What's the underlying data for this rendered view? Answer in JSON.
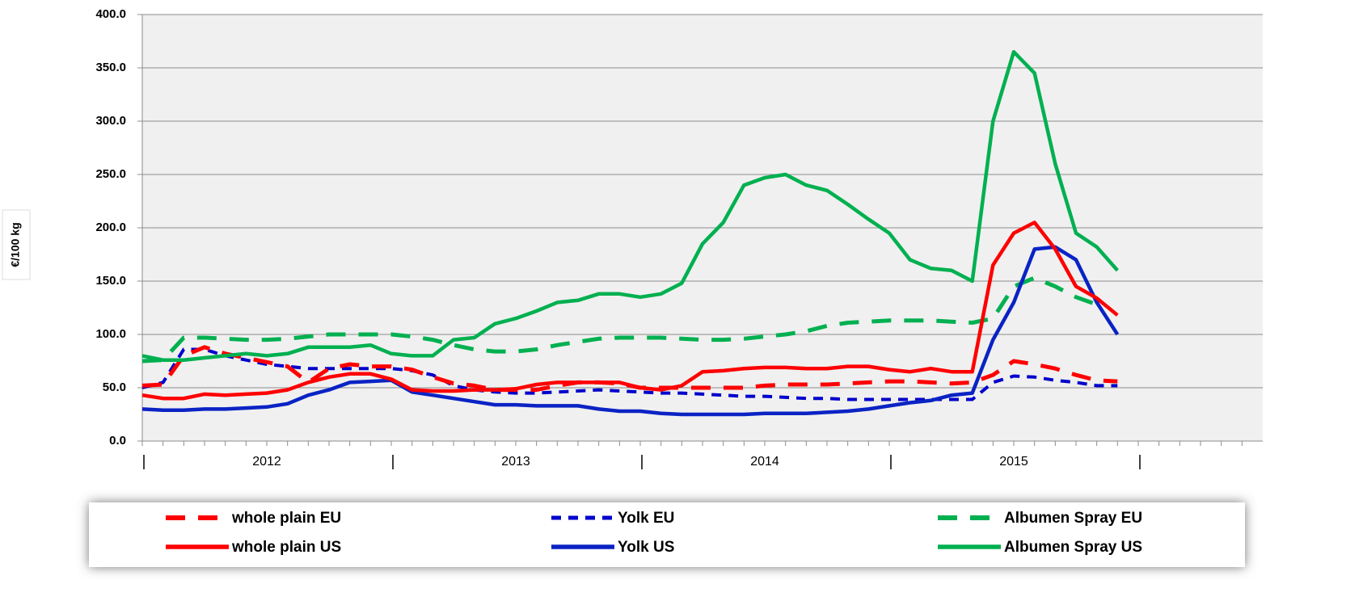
{
  "chart_data": {
    "type": "line",
    "y_label": "€/100 kg",
    "categories": [
      null,
      null,
      null,
      null,
      null,
      null,
      null,
      null,
      null,
      null,
      null,
      null,
      null,
      null,
      null,
      null,
      null,
      null,
      null,
      null,
      null,
      null,
      null,
      null,
      null,
      null,
      null,
      null,
      null,
      null,
      null,
      null,
      null,
      null,
      null,
      null,
      null,
      null,
      null,
      null,
      null,
      null,
      null,
      null,
      null,
      null,
      null,
      null,
      null,
      null,
      null,
      null,
      null,
      null
    ],
    "x_groups": [
      "2012",
      "2013",
      "2014",
      "2015"
    ],
    "ylim": [
      0,
      400
    ],
    "yticks": [
      {
        "value": 0,
        "label": "0.0"
      },
      {
        "value": 50,
        "label": "50.0"
      },
      {
        "value": 100,
        "label": "100.0"
      },
      {
        "value": 150,
        "label": "150.0"
      },
      {
        "value": 200,
        "label": "200.0"
      },
      {
        "value": 250,
        "label": "250.0"
      },
      {
        "value": 300,
        "label": "300.0"
      },
      {
        "value": 350,
        "label": "350.0"
      },
      {
        "value": 400,
        "label": "400.0"
      }
    ],
    "grid": true,
    "legend": "bottom",
    "series": [
      {
        "name": "whole plain EU",
        "color": "#ff0000",
        "style": "dashed",
        "values": [
          52,
          53,
          80,
          88,
          82,
          78,
          74,
          70,
          55,
          68,
          72,
          70,
          70,
          67,
          60,
          54,
          52,
          48,
          48,
          48,
          52,
          55,
          55,
          54,
          50,
          50,
          50,
          50,
          50,
          50,
          52,
          53,
          53,
          53,
          54,
          55,
          56,
          56,
          55,
          54,
          55,
          62,
          75,
          72,
          68,
          62,
          57,
          56,
          null,
          null,
          null,
          null,
          null,
          null
        ]
      },
      {
        "name": "Yolk EU",
        "color": "#0000cc",
        "style": "dotted",
        "values": [
          50,
          55,
          86,
          86,
          80,
          76,
          72,
          70,
          68,
          68,
          68,
          68,
          68,
          66,
          62,
          52,
          48,
          46,
          45,
          45,
          46,
          47,
          48,
          47,
          46,
          45,
          45,
          44,
          43,
          42,
          42,
          41,
          40,
          40,
          39,
          39,
          39,
          39,
          39,
          39,
          39,
          55,
          61,
          60,
          57,
          55,
          52,
          52,
          null,
          null,
          null,
          null,
          null,
          null
        ]
      },
      {
        "name": "Albumen Spray EU",
        "color": "#00b050",
        "style": "dashed",
        "values": [
          75,
          76,
          97,
          97,
          96,
          95,
          95,
          96,
          98,
          100,
          100,
          100,
          100,
          98,
          95,
          90,
          86,
          84,
          84,
          86,
          90,
          93,
          96,
          97,
          97,
          97,
          96,
          95,
          95,
          96,
          98,
          100,
          103,
          108,
          111,
          112,
          113,
          113,
          113,
          112,
          111,
          115,
          145,
          153,
          145,
          135,
          128,
          null,
          null,
          null,
          null,
          null,
          null,
          null
        ]
      },
      {
        "name": "whole plain US",
        "color": "#ff0000",
        "style": "solid",
        "values": [
          43,
          40,
          40,
          44,
          43,
          44,
          45,
          48,
          55,
          60,
          63,
          63,
          58,
          48,
          47,
          47,
          48,
          48,
          49,
          53,
          55,
          55,
          55,
          55,
          50,
          48,
          52,
          65,
          66,
          68,
          69,
          69,
          68,
          68,
          70,
          70,
          67,
          65,
          68,
          65,
          65,
          165,
          195,
          205,
          180,
          145,
          134,
          118,
          null,
          null,
          null,
          null,
          null,
          null
        ]
      },
      {
        "name": "Yolk US",
        "color": "#0a23c4",
        "style": "solid",
        "values": [
          30,
          29,
          29,
          30,
          30,
          31,
          32,
          35,
          43,
          48,
          55,
          56,
          57,
          46,
          43,
          40,
          37,
          34,
          34,
          33,
          33,
          33,
          30,
          28,
          28,
          26,
          25,
          25,
          25,
          25,
          26,
          26,
          26,
          27,
          28,
          30,
          33,
          36,
          38,
          43,
          45,
          95,
          130,
          180,
          182,
          170,
          130,
          100,
          null,
          null,
          null,
          null,
          null,
          null
        ]
      },
      {
        "name": "Albumen Spray US",
        "color": "#00b050",
        "style": "solid",
        "values": [
          80,
          76,
          76,
          78,
          80,
          82,
          80,
          82,
          88,
          88,
          88,
          90,
          82,
          80,
          80,
          95,
          97,
          110,
          115,
          122,
          130,
          132,
          138,
          138,
          135,
          138,
          148,
          185,
          205,
          240,
          247,
          250,
          240,
          235,
          222,
          208,
          195,
          170,
          162,
          160,
          150,
          300,
          365,
          345,
          260,
          195,
          182,
          160,
          null,
          null,
          null,
          null,
          null,
          null
        ]
      }
    ]
  }
}
